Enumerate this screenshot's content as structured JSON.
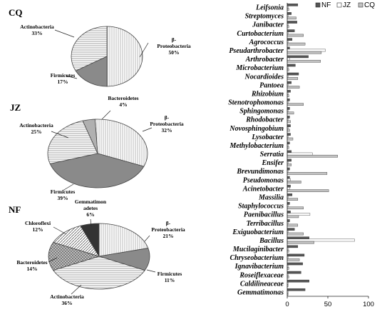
{
  "chart_data": [
    {
      "type": "pie",
      "title": "CQ",
      "slices": [
        {
          "label": [
            "β-",
            "Proteobacteria",
            "50%"
          ],
          "value": 50,
          "fill": "hatch-vertical"
        },
        {
          "label": [
            "Firmicutes",
            "17%"
          ],
          "value": 17,
          "fill": "#8a8a8a"
        },
        {
          "label": [
            "Actinobacteria",
            "33%"
          ],
          "value": 33,
          "fill": "hatch-horizontal"
        }
      ]
    },
    {
      "type": "pie",
      "title": "JZ",
      "slices": [
        {
          "label": [
            "β-",
            "Proteobacteria",
            "32%"
          ],
          "value": 32,
          "fill": "hatch-vertical"
        },
        {
          "label": [
            "Firmicutes",
            "39%"
          ],
          "value": 39,
          "fill": "#8a8a8a"
        },
        {
          "label": [
            "Actinobacteria",
            "25%"
          ],
          "value": 25,
          "fill": "hatch-horizontal"
        },
        {
          "label": [
            "Bacteroidetes",
            "4%"
          ],
          "value": 4,
          "fill": "#b0b0b0"
        }
      ]
    },
    {
      "type": "pie",
      "title": "NF",
      "slices": [
        {
          "label": [
            "β-",
            "Proteobacteria",
            "21%"
          ],
          "value": 21,
          "fill": "hatch-vertical"
        },
        {
          "label": [
            "Firmicutes",
            "11%"
          ],
          "value": 11,
          "fill": "#8a8a8a"
        },
        {
          "label": [
            "Actinobacteria",
            "36%"
          ],
          "value": 36,
          "fill": "hatch-horizontal"
        },
        {
          "label": [
            "Bacteroidetes",
            "14%"
          ],
          "value": 14,
          "fill": "hatch-cross"
        },
        {
          "label": [
            "Chloroflexi",
            "12%"
          ],
          "value": 12,
          "fill": "hatch-diagonal"
        },
        {
          "label": [
            "Gemmatimon",
            "adetes",
            "6%"
          ],
          "value": 6,
          "fill": "#333333"
        }
      ]
    },
    {
      "type": "bar",
      "orientation": "horizontal",
      "categories": [
        "Leifsonia",
        "Streptomyces",
        "Janibacter",
        "Curtobacterium",
        "Agrococcus",
        "Pseudarthrobacter",
        "Arthrobacter",
        "Microbacterium",
        "Nocardioides",
        "Pantoea",
        "Rhizobium",
        "Stenotrophomonas",
        "Sphingomonas",
        "Rhodobacter",
        "Novosphingobium",
        "Lysobacter",
        "Methylobacterium",
        "Serratia",
        "Ensifer",
        "Brevundimonas",
        "Pseudomonas",
        "Acinetobacter",
        "Massilia",
        "Staphylococcus",
        "Paenibacillus",
        "Terribacillus",
        "Exiguobacterium",
        "Bacillus",
        "Mucilaginibacter",
        "Chryseobacterium",
        "Ignavibacterium",
        "Roseiflexaceae",
        "Caldilineaceae",
        "Gemmatimonas"
      ],
      "series": [
        {
          "name": "NF",
          "color": "#555555",
          "values": [
            13,
            5,
            12,
            9,
            6,
            3,
            26,
            10,
            14,
            5,
            4,
            3,
            3,
            3,
            4,
            4,
            3,
            5,
            5,
            3,
            3,
            4,
            6,
            3,
            4,
            3,
            9,
            27,
            13,
            21,
            19,
            17,
            27,
            22
          ]
        },
        {
          "name": "JZ",
          "color": "#ffffff",
          "values": [
            1,
            1,
            1,
            1,
            1,
            47,
            3,
            1,
            1,
            1,
            1,
            1,
            1,
            1,
            1,
            1,
            1,
            31,
            1,
            1,
            4,
            3,
            1,
            1,
            28,
            1,
            1,
            83,
            1,
            1,
            1,
            1,
            1,
            1
          ]
        },
        {
          "name": "CQ",
          "color": "#c2c2c2",
          "values": [
            2,
            11,
            2,
            20,
            22,
            42,
            41,
            2,
            13,
            15,
            2,
            20,
            8,
            4,
            3,
            7,
            2,
            62,
            5,
            49,
            17,
            51,
            13,
            20,
            14,
            13,
            20,
            33,
            2,
            15,
            2,
            2,
            1,
            1
          ]
        }
      ],
      "xlim": [
        0,
        100
      ],
      "xticks": [
        0,
        50,
        100
      ],
      "legend_position": "top-right"
    }
  ]
}
